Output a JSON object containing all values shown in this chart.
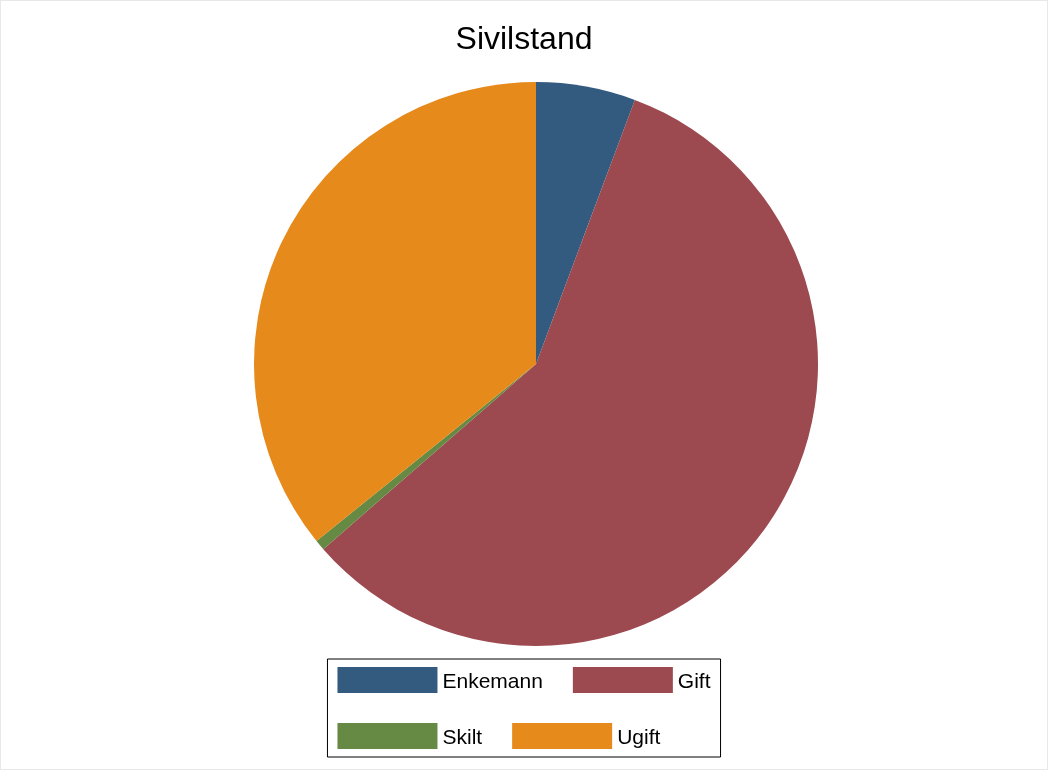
{
  "chart_data": {
    "type": "pie",
    "title": "Sivilstand",
    "categories": [
      "Enkemann",
      "Gift",
      "Skilt",
      "Ugift"
    ],
    "values": [
      5.7,
      57.9,
      0.6,
      35.8
    ],
    "colors": [
      "#335b80",
      "#9c4950",
      "#668944",
      "#e58a1b"
    ],
    "legend": "bottom"
  }
}
